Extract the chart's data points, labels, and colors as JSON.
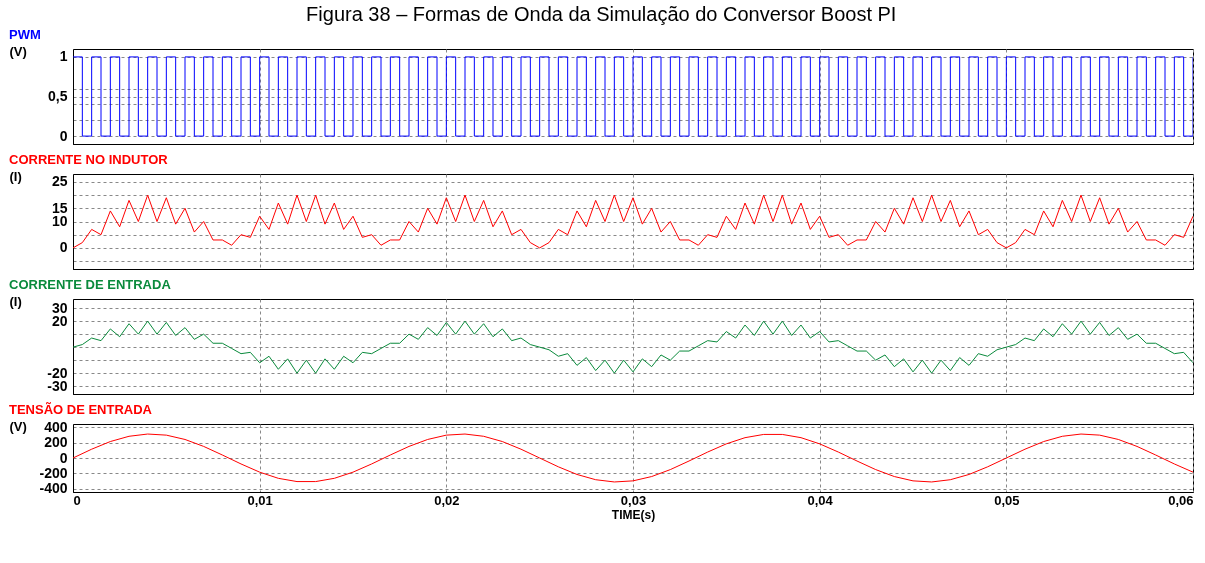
{
  "chart_data": [
    {
      "type": "step",
      "title": "Figura 38 – Formas de Onda da Simulação do Conversor Boost PI",
      "subtitle": "PWM",
      "ylabel": "(V)",
      "xlim": [
        0,
        0.06
      ],
      "xticks": [
        0,
        0.01,
        0.02,
        0.03,
        0.04,
        0.05,
        0.06
      ],
      "ylim": [
        -0.1,
        1.1
      ],
      "yticks": [
        0,
        {
          "value": 0.2,
          "label": null
        },
        {
          "value": 0.4,
          "label": null
        },
        {
          "value": 0.5,
          "label": "0,5"
        },
        {
          "value": 0.6,
          "label": null
        },
        1
      ],
      "grid": true,
      "tick_labels": "y",
      "x": [
        0,
        0.0005,
        0.001,
        0.0015,
        0.002,
        0.0025,
        0.003,
        0.0035,
        0.004,
        0.0045,
        0.005,
        0.0055,
        0.006,
        0.0065,
        0.007,
        0.0075,
        0.008,
        0.0085,
        0.009,
        0.0095,
        0.01,
        0.0105,
        0.011,
        0.0115,
        0.012,
        0.0125,
        0.013,
        0.0135,
        0.014,
        0.0145,
        0.015,
        0.0155,
        0.016,
        0.0165,
        0.017,
        0.0175,
        0.018,
        0.0185,
        0.019,
        0.0195,
        0.02,
        0.0205,
        0.021,
        0.0215,
        0.022,
        0.0225,
        0.023,
        0.0235,
        0.024,
        0.0245,
        0.025,
        0.0255,
        0.026,
        0.0265,
        0.027,
        0.0275,
        0.028,
        0.0285,
        0.029,
        0.0295,
        0.03,
        0.0305,
        0.031,
        0.0315,
        0.032,
        0.0325,
        0.033,
        0.0335,
        0.034,
        0.0345,
        0.035,
        0.0355,
        0.036,
        0.0365,
        0.037,
        0.0375,
        0.038,
        0.0385,
        0.039,
        0.0395,
        0.04,
        0.0405,
        0.041,
        0.0415,
        0.042,
        0.0425,
        0.043,
        0.0435,
        0.044,
        0.0445,
        0.045,
        0.0455,
        0.046,
        0.0465,
        0.047,
        0.0475,
        0.048,
        0.0485,
        0.049,
        0.0495,
        0.05,
        0.0505,
        0.051,
        0.0515,
        0.052,
        0.0525,
        0.053,
        0.0535,
        0.054,
        0.0545,
        0.055,
        0.0555,
        0.056,
        0.0565,
        0.057,
        0.0575,
        0.058,
        0.0585,
        0.059,
        0.0595,
        0.06
      ],
      "series": [
        {
          "color": "#0000ff",
          "values": [
            1,
            0,
            1,
            0,
            1,
            0,
            1,
            0,
            1,
            0,
            1,
            0,
            1,
            0,
            1,
            0,
            1,
            0,
            1,
            0,
            1,
            0,
            1,
            0,
            1,
            0,
            1,
            0,
            1,
            0,
            1,
            0,
            1,
            0,
            1,
            0,
            1,
            0,
            1,
            0,
            1,
            0,
            1,
            0,
            1,
            0,
            1,
            0,
            1,
            0,
            1,
            0,
            1,
            0,
            1,
            0,
            1,
            0,
            1,
            0,
            1,
            0,
            1,
            0,
            1,
            0,
            1,
            0,
            1,
            0,
            1,
            0,
            1,
            0,
            1,
            0,
            1,
            0,
            1,
            0,
            1,
            0,
            1,
            0,
            1,
            0,
            1,
            0,
            1,
            0,
            1,
            0,
            1,
            0,
            1,
            0,
            1,
            0,
            1,
            0,
            1,
            0,
            1,
            0,
            1,
            0,
            1,
            0,
            1,
            0,
            1,
            0,
            1,
            0,
            1,
            0,
            1,
            0,
            1,
            0,
            1
          ]
        }
      ]
    },
    {
      "type": "line",
      "title": "CORRENTE NO INDUTOR",
      "ylabel": "(I)",
      "xlim": [
        0,
        0.06
      ],
      "xticks": [
        0,
        0.01,
        0.02,
        0.03,
        0.04,
        0.05,
        0.06
      ],
      "ylim": [
        -8,
        28
      ],
      "yticks": [
        {
          "value": -5,
          "label": null
        },
        0,
        {
          "value": 5,
          "label": null
        },
        10,
        15,
        {
          "value": 20,
          "label": null
        },
        25
      ],
      "grid": true,
      "tick_labels": "y",
      "x": [
        0,
        0.0005,
        0.001,
        0.0015,
        0.002,
        0.0025,
        0.003,
        0.0035,
        0.004,
        0.0045,
        0.005,
        0.0055,
        0.006,
        0.0065,
        0.007,
        0.0075,
        0.008,
        0.0085,
        0.009,
        0.0095,
        0.01,
        0.0105,
        0.011,
        0.0115,
        0.012,
        0.0125,
        0.013,
        0.0135,
        0.014,
        0.0145,
        0.015,
        0.0155,
        0.016,
        0.0165,
        0.017,
        0.0175,
        0.018,
        0.0185,
        0.019,
        0.0195,
        0.02,
        0.0205,
        0.021,
        0.0215,
        0.022,
        0.0225,
        0.023,
        0.0235,
        0.024,
        0.0245,
        0.025,
        0.0255,
        0.026,
        0.0265,
        0.027,
        0.0275,
        0.028,
        0.0285,
        0.029,
        0.0295,
        0.03,
        0.0305,
        0.031,
        0.0315,
        0.032,
        0.0325,
        0.033,
        0.0335,
        0.034,
        0.0345,
        0.035,
        0.0355,
        0.036,
        0.0365,
        0.037,
        0.0375,
        0.038,
        0.0385,
        0.039,
        0.0395,
        0.04,
        0.0405,
        0.041,
        0.0415,
        0.042,
        0.0425,
        0.043,
        0.0435,
        0.044,
        0.0445,
        0.045,
        0.0455,
        0.046,
        0.0465,
        0.047,
        0.0475,
        0.048,
        0.0485,
        0.049,
        0.0495,
        0.05,
        0.0505,
        0.051,
        0.0515,
        0.052,
        0.0525,
        0.053,
        0.0535,
        0.054,
        0.0545,
        0.055,
        0.0555,
        0.056,
        0.0565,
        0.057,
        0.0575,
        0.058,
        0.0585,
        0.059,
        0.0595,
        0.06
      ],
      "series": [
        {
          "color": "#ff0000",
          "values": [
            0,
            2,
            7,
            5,
            14,
            8,
            18,
            10,
            20,
            10,
            19,
            9,
            15,
            6,
            10,
            3,
            3,
            1,
            5,
            4,
            12,
            7,
            17,
            9,
            20,
            10,
            20,
            9,
            17,
            7,
            12,
            4,
            5,
            1,
            3,
            3,
            10,
            6,
            15,
            9,
            19,
            10,
            20,
            10,
            18,
            8,
            14,
            5,
            7,
            2,
            0,
            2,
            7,
            5,
            14,
            8,
            18,
            10,
            20,
            10,
            19,
            9,
            15,
            6,
            10,
            3,
            3,
            1,
            5,
            4,
            12,
            7,
            17,
            9,
            20,
            10,
            20,
            9,
            17,
            7,
            12,
            4,
            5,
            1,
            3,
            3,
            10,
            6,
            15,
            9,
            19,
            10,
            20,
            10,
            18,
            8,
            14,
            5,
            7,
            2,
            0,
            2,
            7,
            5,
            14,
            8,
            18,
            10,
            20,
            10,
            19,
            9,
            15,
            6,
            10,
            3,
            3,
            1,
            5,
            4,
            12
          ]
        }
      ]
    },
    {
      "type": "line",
      "title": "CORRENTE DE ENTRADA",
      "ylabel": "(I)",
      "xlim": [
        0,
        0.06
      ],
      "xticks": [
        0,
        0.01,
        0.02,
        0.03,
        0.04,
        0.05,
        0.06
      ],
      "ylim": [
        -36,
        37
      ],
      "yticks": [
        -30,
        -20,
        {
          "value": -10,
          "label": null
        },
        {
          "value": 0,
          "label": null
        },
        {
          "value": 10,
          "label": null
        },
        20,
        30
      ],
      "grid": true,
      "tick_labels": "y",
      "x": [
        0,
        0.0005,
        0.001,
        0.0015,
        0.002,
        0.0025,
        0.003,
        0.0035,
        0.004,
        0.0045,
        0.005,
        0.0055,
        0.006,
        0.0065,
        0.007,
        0.0075,
        0.008,
        0.0085,
        0.009,
        0.0095,
        0.01,
        0.0105,
        0.011,
        0.0115,
        0.012,
        0.0125,
        0.013,
        0.0135,
        0.014,
        0.0145,
        0.015,
        0.0155,
        0.016,
        0.0165,
        0.017,
        0.0175,
        0.018,
        0.0185,
        0.019,
        0.0195,
        0.02,
        0.0205,
        0.021,
        0.0215,
        0.022,
        0.0225,
        0.023,
        0.0235,
        0.024,
        0.0245,
        0.025,
        0.0255,
        0.026,
        0.0265,
        0.027,
        0.0275,
        0.028,
        0.0285,
        0.029,
        0.0295,
        0.03,
        0.0305,
        0.031,
        0.0315,
        0.032,
        0.0325,
        0.033,
        0.0335,
        0.034,
        0.0345,
        0.035,
        0.0355,
        0.036,
        0.0365,
        0.037,
        0.0375,
        0.038,
        0.0385,
        0.039,
        0.0395,
        0.04,
        0.0405,
        0.041,
        0.0415,
        0.042,
        0.0425,
        0.043,
        0.0435,
        0.044,
        0.0445,
        0.045,
        0.0455,
        0.046,
        0.0465,
        0.047,
        0.0475,
        0.048,
        0.0485,
        0.049,
        0.0495,
        0.05,
        0.0505,
        0.051,
        0.0515,
        0.052,
        0.0525,
        0.053,
        0.0535,
        0.054,
        0.0545,
        0.055,
        0.0555,
        0.056,
        0.0565,
        0.057,
        0.0575,
        0.058,
        0.0585,
        0.059,
        0.0595,
        0.06
      ],
      "series": [
        {
          "color": "#0a8a3c",
          "values": [
            0,
            2,
            7,
            5,
            14,
            8,
            18,
            10,
            20,
            10,
            19,
            9,
            15,
            6,
            10,
            3,
            3,
            -1,
            -5,
            -4,
            -12,
            -7,
            -17,
            -9,
            -20,
            -10,
            -20,
            -9,
            -17,
            -7,
            -12,
            -4,
            -5,
            -1,
            3,
            3,
            10,
            6,
            15,
            9,
            19,
            10,
            20,
            10,
            18,
            8,
            14,
            5,
            7,
            2,
            0,
            -2,
            -7,
            -5,
            -14,
            -8,
            -18,
            -10,
            -20,
            -10,
            -19,
            -9,
            -15,
            -6,
            -10,
            -3,
            -3,
            1,
            5,
            4,
            12,
            7,
            17,
            9,
            20,
            10,
            20,
            9,
            17,
            7,
            12,
            4,
            5,
            1,
            -3,
            -3,
            -10,
            -6,
            -15,
            -9,
            -19,
            -10,
            -20,
            -10,
            -18,
            -8,
            -14,
            -5,
            -7,
            -2,
            0,
            2,
            7,
            5,
            14,
            8,
            18,
            10,
            20,
            10,
            19,
            9,
            15,
            6,
            10,
            3,
            3,
            -1,
            -5,
            -4,
            -12
          ]
        }
      ]
    },
    {
      "type": "line",
      "title": "TENSÃO DE ENTRADA",
      "ylabel": "(V)",
      "xlabel": "TIME(s)",
      "xlim": [
        0,
        0.06
      ],
      "xticks": [
        0,
        {
          "value": 0.01,
          "label": "0,01"
        },
        {
          "value": 0.02,
          "label": "0,02"
        },
        {
          "value": 0.03,
          "label": "0,03"
        },
        {
          "value": 0.04,
          "label": "0,04"
        },
        {
          "value": 0.05,
          "label": "0,05"
        },
        {
          "value": 0.06,
          "label": "0,06"
        }
      ],
      "ylim": [
        -440,
        440
      ],
      "yticks": [
        -400,
        -200,
        0,
        200,
        400
      ],
      "grid": true,
      "x": [
        0,
        0.001,
        0.002,
        0.003,
        0.004,
        0.005,
        0.006,
        0.007,
        0.008,
        0.009,
        0.01,
        0.011,
        0.012,
        0.013,
        0.014,
        0.015,
        0.016,
        0.017,
        0.018,
        0.019,
        0.02,
        0.021,
        0.022,
        0.023,
        0.024,
        0.025,
        0.026,
        0.027,
        0.028,
        0.029,
        0.03,
        0.031,
        0.032,
        0.033,
        0.034,
        0.035,
        0.036,
        0.037,
        0.038,
        0.039,
        0.04,
        0.041,
        0.042,
        0.043,
        0.044,
        0.045,
        0.046,
        0.047,
        0.048,
        0.049,
        0.05,
        0.051,
        0.052,
        0.053,
        0.054,
        0.055,
        0.056,
        0.057,
        0.058,
        0.059,
        0.06
      ],
      "series": [
        {
          "color": "#ff0000",
          "values": [
            0,
            114,
            213,
            281,
            310,
            296,
            240,
            150,
            39,
            -77,
            -183,
            -263,
            -305,
            -305,
            -263,
            -183,
            -77,
            39,
            150,
            240,
            296,
            310,
            281,
            213,
            114,
            0,
            -114,
            -213,
            -281,
            -310,
            -296,
            -240,
            -150,
            -39,
            77,
            183,
            263,
            305,
            305,
            263,
            183,
            77,
            -39,
            -150,
            -240,
            -296,
            -310,
            -281,
            -213,
            -114,
            0,
            114,
            213,
            281,
            310,
            296,
            240,
            150,
            39,
            -77,
            -183
          ]
        }
      ]
    }
  ]
}
